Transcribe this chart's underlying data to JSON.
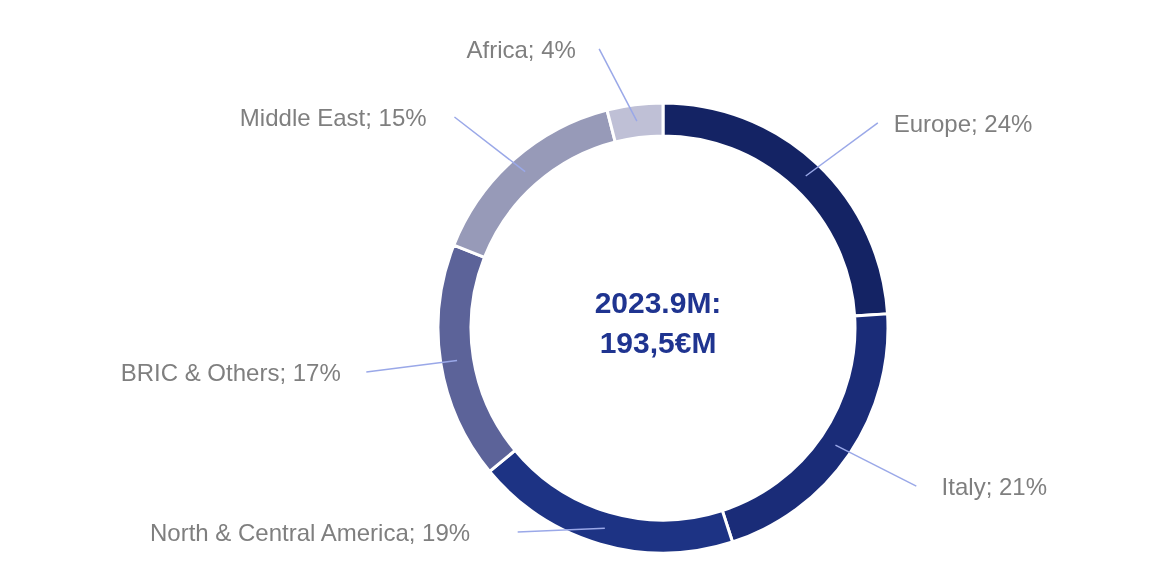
{
  "chart_data": {
    "type": "donut",
    "categories": [
      "Europe",
      "Italy",
      "North & Central America",
      "BRIC & Others",
      "Middle East",
      "Africa"
    ],
    "values": [
      24,
      21,
      19,
      17,
      15,
      4
    ],
    "colors": [
      "#142364",
      "#1a2c78",
      "#1d3384",
      "#5c6399",
      "#979ab8",
      "#bfc0d6"
    ],
    "value_labels": [
      "24%",
      "21%",
      "19%",
      "17%",
      "15%",
      "4%"
    ],
    "annotations": [
      "2023.9M:",
      "193,5€M"
    ]
  }
}
